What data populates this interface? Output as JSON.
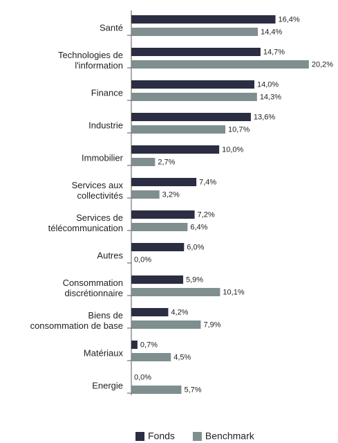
{
  "chart_data": {
    "type": "barh",
    "categories": [
      "Santé",
      "Technologies de\nl'information",
      "Finance",
      "Industrie",
      "Immobilier",
      "Services aux\ncollectivités",
      "Services de\ntélécommunication",
      "Autres",
      "Consommation\ndiscrétionnaire",
      "Biens de\nconsommation de base",
      "Matériaux",
      "Energie"
    ],
    "series": [
      {
        "name": "Fonds",
        "color": "#2b2d42",
        "values": [
          16.4,
          14.7,
          14.0,
          13.6,
          10.0,
          7.4,
          7.2,
          6.0,
          5.9,
          4.2,
          0.7,
          0.0
        ],
        "value_labels": [
          "16,4%",
          "14,7%",
          "14,0%",
          "13,6%",
          "10,0%",
          "7,4%",
          "7,2%",
          "6,0%",
          "5,9%",
          "4,2%",
          "0,7%",
          "0,0%"
        ]
      },
      {
        "name": "Benchmark",
        "color": "#7f8e8e",
        "values": [
          14.4,
          20.2,
          14.3,
          10.7,
          2.7,
          3.2,
          6.4,
          0.0,
          10.1,
          7.9,
          4.5,
          5.7
        ],
        "value_labels": [
          "14,4%",
          "20,2%",
          "14,3%",
          "10,7%",
          "2,7%",
          "3,2%",
          "6,4%",
          "0,0%",
          "10,1%",
          "7,9%",
          "4,5%",
          "5,7%"
        ]
      }
    ],
    "xlim": [
      0,
      21
    ],
    "legend": "bottom"
  }
}
